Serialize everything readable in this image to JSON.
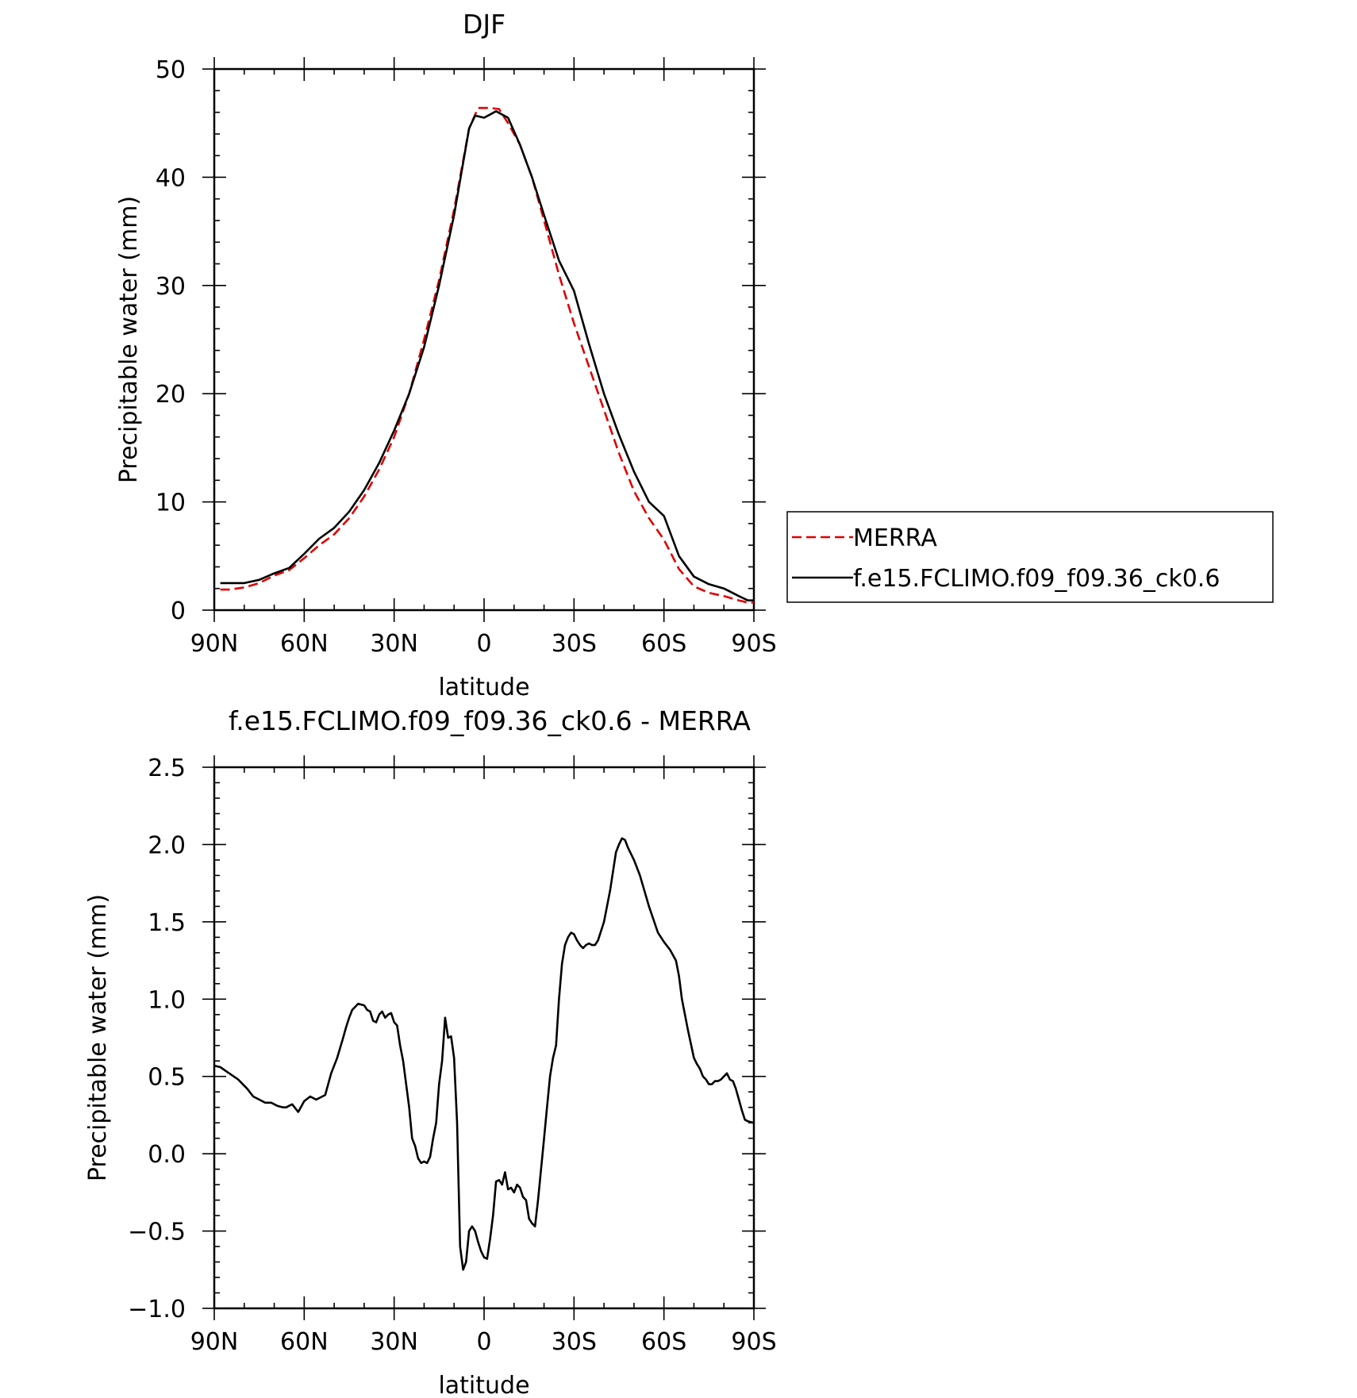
{
  "chart_data": [
    {
      "type": "line",
      "title": "DJF",
      "xlabel": "latitude",
      "ylabel": "Precipitable water (mm)",
      "xlim": [
        -90,
        90
      ],
      "ylim": [
        0,
        50
      ],
      "x_ticks": [
        -90,
        -60,
        -30,
        0,
        30,
        60,
        90
      ],
      "x_tick_labels": [
        "90N",
        "60N",
        "30N",
        "0",
        "30S",
        "60S",
        "90S"
      ],
      "y_ticks": [
        0,
        10,
        20,
        30,
        40,
        50
      ],
      "y_tick_labels": [
        "0",
        "10",
        "20",
        "30",
        "40",
        "50"
      ],
      "grid": false,
      "legend": {
        "placement": "right",
        "entries": [
          "MERRA",
          "f.e15.FCLIMO.f09_f09.36_ck0.6"
        ]
      },
      "series": [
        {
          "name": "MERRA",
          "color": "#e00000",
          "dash": "dashed",
          "x": [
            -88,
            -85,
            -80,
            -75,
            -70,
            -65,
            -60,
            -55,
            -50,
            -45,
            -40,
            -35,
            -30,
            -25,
            -20,
            -15,
            -10,
            -5,
            -2,
            0,
            2,
            5,
            8,
            12,
            16,
            20,
            25,
            30,
            35,
            40,
            45,
            50,
            55,
            60,
            65,
            70,
            75,
            80,
            85,
            88,
            90
          ],
          "y": [
            1.9,
            1.9,
            2.1,
            2.5,
            3.2,
            3.7,
            4.8,
            6.0,
            7.0,
            8.5,
            10.5,
            13.0,
            16.0,
            20.0,
            25.0,
            30.5,
            37.0,
            44.5,
            46.4,
            46.4,
            46.4,
            46.3,
            45.0,
            43.0,
            40.0,
            36.0,
            31.0,
            26.5,
            22.5,
            18.5,
            14.5,
            11.0,
            8.5,
            6.5,
            3.8,
            2.2,
            1.6,
            1.3,
            0.9,
            0.7,
            0.7
          ]
        },
        {
          "name": "f.e15.FCLIMO.f09_f09.36_ck0.6",
          "color": "#000000",
          "dash": "solid",
          "x": [
            -88,
            -85,
            -80,
            -75,
            -70,
            -65,
            -60,
            -55,
            -50,
            -45,
            -40,
            -35,
            -30,
            -25,
            -20,
            -15,
            -10,
            -5,
            -3,
            0,
            2,
            4,
            8,
            12,
            16,
            20,
            25,
            30,
            35,
            40,
            45,
            50,
            55,
            60,
            65,
            70,
            75,
            80,
            85,
            88,
            90
          ],
          "y": [
            2.5,
            2.5,
            2.5,
            2.8,
            3.4,
            3.9,
            5.2,
            6.6,
            7.6,
            9.1,
            11.1,
            13.6,
            16.6,
            20.0,
            24.3,
            30.0,
            36.5,
            44.5,
            45.7,
            45.5,
            45.8,
            46.1,
            45.5,
            43.0,
            40.0,
            36.5,
            32.3,
            29.5,
            24.6,
            20.0,
            16.2,
            12.8,
            10.0,
            8.7,
            5.0,
            3.1,
            2.4,
            2.0,
            1.3,
            0.9,
            0.9
          ]
        }
      ]
    },
    {
      "type": "line",
      "title": "f.e15.FCLIMO.f09_f09.36_ck0.6 - MERRA",
      "xlabel": "latitude",
      "ylabel": "Precipitable water (mm)",
      "xlim": [
        -90,
        90
      ],
      "ylim": [
        -1.0,
        2.5
      ],
      "x_ticks": [
        -90,
        -60,
        -30,
        0,
        30,
        60,
        90
      ],
      "x_tick_labels": [
        "90N",
        "60N",
        "30N",
        "0",
        "30S",
        "60S",
        "90S"
      ],
      "y_ticks": [
        -1.0,
        -0.5,
        0.0,
        0.5,
        1.0,
        1.5,
        2.0,
        2.5
      ],
      "y_tick_labels": [
        "−1.0",
        "−0.5",
        "0.0",
        "0.5",
        "1.0",
        "1.5",
        "2.0",
        "2.5"
      ],
      "grid": false,
      "series": [
        {
          "color": "#000000",
          "dash": "solid",
          "x": [
            -90,
            -88,
            -85,
            -82,
            -79,
            -77,
            -75,
            -73,
            -71,
            -69,
            -67,
            -66,
            -65,
            -64,
            -62,
            -60,
            -58,
            -56,
            -55,
            -53,
            -51,
            -49,
            -47,
            -46,
            -45,
            -44,
            -43,
            -42,
            -40,
            -39,
            -38,
            -37,
            -36,
            -35,
            -34,
            -33,
            -32,
            -31,
            -30,
            -29,
            -28,
            -27,
            -26,
            -25,
            -24,
            -23,
            -22,
            -21,
            -20,
            -19,
            -18,
            -17,
            -16,
            -15,
            -14,
            -13,
            -12,
            -11,
            -10,
            -9,
            -8,
            -7,
            -6,
            -5,
            -4,
            -3,
            -2,
            -1,
            0,
            1,
            2,
            3,
            4,
            5,
            6,
            7,
            8,
            9,
            10,
            11,
            12,
            13,
            14,
            15,
            16,
            17,
            18,
            19,
            20,
            21,
            22,
            23,
            24,
            25,
            26,
            27,
            28,
            29,
            30,
            31,
            32,
            33,
            34,
            35,
            36,
            37,
            38,
            40,
            42,
            44,
            45,
            46,
            47,
            48,
            50,
            52,
            55,
            58,
            60,
            62,
            64,
            65,
            66,
            67,
            68,
            70,
            71,
            72,
            73,
            74,
            75,
            76,
            77,
            78,
            79,
            80,
            81,
            82,
            83,
            84,
            85,
            86,
            87,
            88,
            90
          ],
          "y": [
            0.57,
            0.56,
            0.52,
            0.48,
            0.42,
            0.37,
            0.35,
            0.33,
            0.33,
            0.31,
            0.3,
            0.3,
            0.31,
            0.32,
            0.27,
            0.34,
            0.37,
            0.35,
            0.36,
            0.38,
            0.52,
            0.62,
            0.75,
            0.82,
            0.88,
            0.93,
            0.95,
            0.97,
            0.96,
            0.93,
            0.92,
            0.86,
            0.85,
            0.9,
            0.92,
            0.88,
            0.9,
            0.91,
            0.85,
            0.83,
            0.7,
            0.6,
            0.45,
            0.3,
            0.1,
            0.05,
            -0.03,
            -0.06,
            -0.05,
            -0.06,
            -0.02,
            0.1,
            0.2,
            0.45,
            0.6,
            0.88,
            0.75,
            0.76,
            0.62,
            0.2,
            -0.6,
            -0.75,
            -0.7,
            -0.5,
            -0.47,
            -0.5,
            -0.57,
            -0.63,
            -0.67,
            -0.68,
            -0.55,
            -0.4,
            -0.18,
            -0.17,
            -0.2,
            -0.12,
            -0.23,
            -0.22,
            -0.25,
            -0.2,
            -0.22,
            -0.28,
            -0.3,
            -0.42,
            -0.45,
            -0.47,
            -0.3,
            -0.1,
            0.1,
            0.3,
            0.5,
            0.62,
            0.7,
            1.0,
            1.23,
            1.35,
            1.4,
            1.43,
            1.42,
            1.38,
            1.35,
            1.33,
            1.35,
            1.36,
            1.35,
            1.35,
            1.38,
            1.5,
            1.7,
            1.95,
            2.0,
            2.04,
            2.03,
            1.98,
            1.9,
            1.8,
            1.6,
            1.43,
            1.37,
            1.32,
            1.25,
            1.15,
            1.0,
            0.9,
            0.8,
            0.62,
            0.58,
            0.55,
            0.5,
            0.48,
            0.45,
            0.45,
            0.47,
            0.47,
            0.48,
            0.5,
            0.52,
            0.48,
            0.47,
            0.42,
            0.35,
            0.28,
            0.22,
            0.21,
            0.2
          ]
        }
      ]
    }
  ]
}
